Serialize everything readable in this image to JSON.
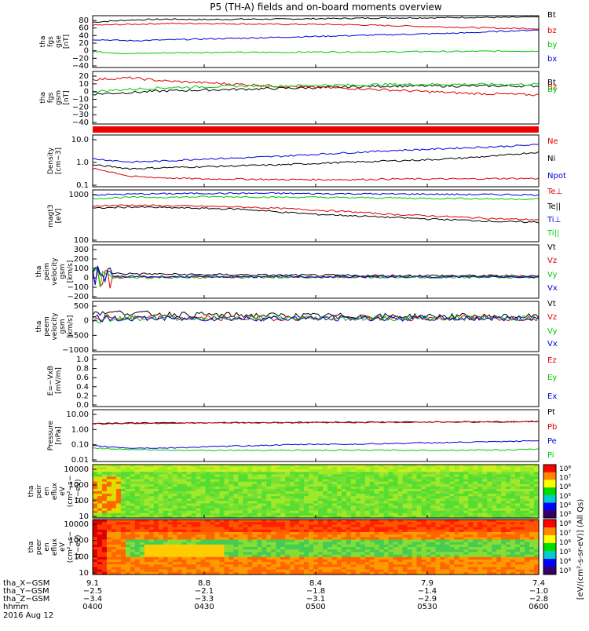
{
  "title": "P5 (TH-A) fields and on-board moments overview",
  "colors": {
    "black": "#000000",
    "red": "#dd0000",
    "green": "#00cc00",
    "blue": "#0000dd",
    "redbar": "#ee0000"
  },
  "chart_data": [
    {
      "type": "line",
      "id": "fgs_gse",
      "ylabel": [
        "tha",
        "fgs",
        "gse",
        "[nT]"
      ],
      "ytick_labels": [
        "80",
        "60",
        "40",
        "20",
        "0",
        "−20",
        "−40"
      ],
      "ylim": [
        -40,
        80
      ],
      "series": [
        {
          "name": "Bt",
          "color": "black",
          "values": [
            65,
            70,
            72,
            71,
            72,
            72,
            73,
            74,
            75,
            75,
            76,
            76,
            77
          ]
        },
        {
          "name": "bz",
          "color": "red",
          "values": [
            58,
            60,
            62,
            62,
            61,
            60,
            60,
            59,
            57,
            55,
            53,
            51,
            50
          ]
        },
        {
          "name": "by",
          "color": "green",
          "values": [
            -3,
            -8,
            -6,
            -5,
            -5,
            -5,
            -4,
            -4,
            -4,
            -3,
            -3,
            -2,
            -2
          ]
        },
        {
          "name": "bx",
          "color": "blue",
          "values": [
            25,
            22,
            24,
            26,
            28,
            30,
            32,
            34,
            36,
            38,
            40,
            44,
            47
          ]
        }
      ]
    },
    {
      "type": "line",
      "id": "fgs_gsm",
      "ylabel": [
        "tha",
        "fgs",
        "gsm",
        "[nT]"
      ],
      "ytick_labels": [
        "20",
        "10",
        "0",
        "−10",
        "−20",
        "−30",
        "−40"
      ],
      "ylim": [
        -45,
        20
      ],
      "series": [
        {
          "name": "Bt",
          "color": "black",
          "values": [
            -8,
            -6,
            -4,
            -3,
            -2,
            -1,
            0,
            1,
            2,
            2,
            2,
            2,
            2
          ]
        },
        {
          "name": "Bz",
          "color": "red",
          "values": [
            10,
            12,
            8,
            6,
            4,
            2,
            0,
            -1,
            -3,
            -5,
            -7,
            -8,
            -9
          ]
        },
        {
          "name": "By",
          "color": "green",
          "values": [
            -5,
            -2,
            0,
            1,
            2,
            2,
            3,
            3,
            4,
            4,
            4,
            4,
            4
          ]
        }
      ]
    },
    {
      "type": "line",
      "id": "density",
      "ylabel": [
        "Density",
        "[cm−3]"
      ],
      "ytick_labels": [
        "10.0",
        "1.0",
        "0.1"
      ],
      "ylim": [
        0.1,
        10
      ],
      "log": true,
      "series": [
        {
          "name": "Ne",
          "color": "red",
          "values": [
            0.5,
            0.25,
            0.22,
            0.2,
            0.2,
            0.19,
            0.19,
            0.19,
            0.2,
            0.2,
            0.2,
            0.21,
            0.21
          ]
        },
        {
          "name": "Ni",
          "color": "black",
          "values": [
            0.7,
            0.5,
            0.55,
            0.6,
            0.65,
            0.7,
            0.8,
            0.9,
            1.0,
            1.1,
            1.3,
            1.6,
            2.2
          ]
        },
        {
          "name": "Npot",
          "color": "blue",
          "values": [
            1.2,
            0.9,
            1.0,
            1.2,
            1.3,
            1.5,
            1.8,
            2.1,
            2.5,
            2.8,
            3.2,
            3.6,
            4.2
          ]
        }
      ]
    },
    {
      "type": "line",
      "id": "temperature",
      "ylabel": [
        "magt3",
        "[eV]"
      ],
      "ytick_labels": [
        "1000",
        "100"
      ],
      "ylim": [
        30,
        4000
      ],
      "log": true,
      "series": [
        {
          "name": "Te⊥",
          "color": "red",
          "values": [
            900,
            950,
            900,
            850,
            800,
            700,
            600,
            500,
            400,
            350,
            300,
            260,
            240
          ]
        },
        {
          "name": "Te||",
          "color": "black",
          "values": [
            700,
            800,
            750,
            700,
            650,
            500,
            400,
            350,
            300,
            260,
            230,
            200,
            190
          ]
        },
        {
          "name": "Ti⊥",
          "color": "blue",
          "values": [
            2500,
            2700,
            2800,
            2900,
            2900,
            2900,
            2800,
            2800,
            2700,
            2700,
            2600,
            2600,
            2500
          ]
        },
        {
          "name": "Ti||",
          "color": "green",
          "values": [
            1800,
            2000,
            2000,
            2100,
            2100,
            2000,
            2000,
            1900,
            1900,
            1800,
            1800,
            1700,
            1700
          ]
        }
      ]
    },
    {
      "type": "line",
      "id": "ion_velocity",
      "ylabel": [
        "tha",
        "peim",
        "velocity",
        "gsm",
        "[km/s]"
      ],
      "ytick_labels": [
        "300",
        "200",
        "100",
        "0",
        "−100",
        "−200"
      ],
      "ylim": [
        -200,
        300
      ],
      "series": [
        {
          "name": "Vt",
          "color": "black",
          "values": [
            40,
            30,
            25,
            20,
            20,
            15,
            15,
            12,
            12,
            12,
            10,
            10,
            10
          ]
        },
        {
          "name": "Vz",
          "color": "red",
          "values": [
            0,
            0,
            0,
            0,
            0,
            0,
            0,
            0,
            0,
            0,
            0,
            0,
            0
          ]
        },
        {
          "name": "Vy",
          "color": "green",
          "values": [
            -10,
            -5,
            -5,
            -5,
            -4,
            -4,
            -3,
            -3,
            -3,
            -3,
            -3,
            -3,
            -3
          ]
        },
        {
          "name": "Vx",
          "color": "blue",
          "values": [
            5,
            3,
            2,
            2,
            2,
            1,
            1,
            1,
            1,
            1,
            1,
            1,
            1
          ]
        }
      ]
    },
    {
      "type": "line",
      "id": "electron_velocity",
      "ylabel": [
        "tha",
        "peem",
        "velocity",
        "gsm",
        "[km/s]"
      ],
      "ytick_labels": [
        "500",
        "0",
        "−500",
        "−1000"
      ],
      "ylim": [
        -1000,
        500
      ],
      "series": [
        {
          "name": "Vt",
          "color": "black",
          "values": [
            200,
            150,
            120,
            100,
            90,
            80,
            70,
            70,
            60,
            60,
            60,
            50,
            50
          ]
        },
        {
          "name": "Vz",
          "color": "red",
          "values": [
            0,
            0,
            0,
            0,
            0,
            0,
            0,
            0,
            0,
            0,
            0,
            0,
            0
          ]
        },
        {
          "name": "Vy",
          "color": "green",
          "values": [
            0,
            0,
            0,
            0,
            0,
            0,
            0,
            0,
            0,
            0,
            0,
            0,
            0
          ]
        },
        {
          "name": "Vx",
          "color": "blue",
          "values": [
            -20,
            -10,
            -10,
            -10,
            -10,
            -10,
            -10,
            -10,
            -10,
            -10,
            -10,
            -10,
            -10
          ]
        }
      ]
    },
    {
      "type": "line",
      "id": "efield",
      "ylabel": [
        "E=−VxB",
        "[mV/m]"
      ],
      "ytick_labels": [
        "1.0",
        "0.8",
        "0.6",
        "0.4",
        "0.2",
        "0.0"
      ],
      "ylim": [
        0,
        1
      ],
      "series": [
        {
          "name": "Ez",
          "color": "red",
          "values": []
        },
        {
          "name": "Ey",
          "color": "green",
          "values": []
        },
        {
          "name": "Ex",
          "color": "blue",
          "values": []
        }
      ]
    },
    {
      "type": "line",
      "id": "pressure",
      "ylabel": [
        "Pressure",
        "[nPa]"
      ],
      "ytick_labels": [
        "10.00",
        "1.00",
        "0.10",
        "0.01"
      ],
      "ylim": [
        0.01,
        10
      ],
      "log": true,
      "series": [
        {
          "name": "Pt",
          "color": "black",
          "values": [
            1.6,
            1.7,
            1.7,
            1.75,
            1.8,
            1.8,
            1.85,
            1.9,
            1.9,
            1.95,
            2.0,
            2.0,
            2.1
          ]
        },
        {
          "name": "Pb",
          "color": "red",
          "values": [
            1.5,
            1.6,
            1.65,
            1.7,
            1.7,
            1.75,
            1.8,
            1.8,
            1.85,
            1.9,
            1.9,
            1.95,
            2.0
          ]
        },
        {
          "name": "Pe",
          "color": "blue",
          "values": [
            0.08,
            0.06,
            0.06,
            0.07,
            0.08,
            0.09,
            0.1,
            0.1,
            0.11,
            0.12,
            0.13,
            0.14,
            0.16
          ]
        },
        {
          "name": "Pi",
          "color": "green",
          "values": [
            0.06,
            0.05,
            0.045,
            0.045,
            0.045,
            0.045,
            0.045,
            0.045,
            0.045,
            0.045,
            0.046,
            0.047,
            0.05
          ]
        }
      ]
    },
    {
      "type": "heatmap",
      "id": "ion_spectrogram",
      "ylabel": [
        "tha",
        "peir",
        "en",
        "eflux",
        "eV",
        "(cm²−s−",
        "sr−eV)"
      ],
      "ytick_labels": [
        "10000",
        "1000",
        "100",
        "10"
      ],
      "ylim": [
        10,
        20000
      ],
      "log": true
    },
    {
      "type": "heatmap",
      "id": "electron_spectrogram",
      "ylabel": [
        "tha",
        "peer",
        "en",
        "eflux",
        "eV",
        "(cm²−s−",
        "sr−eV)"
      ],
      "ytick_labels": [
        "10000",
        "1000",
        "100",
        "10"
      ],
      "ylim": [
        5,
        20000
      ],
      "log": true
    }
  ],
  "colorbar_ion": {
    "ticks": [
      "10⁸",
      "10⁷",
      "10⁶",
      "10⁵",
      "10⁴",
      "10³"
    ]
  },
  "colorbar_electron": {
    "ticks": [
      "10⁸",
      "10⁷",
      "10⁶",
      "10⁵",
      "10⁴",
      "10³"
    ]
  },
  "colorbar_label": "[eV/(cm²-s-sr-eV)] (All Qs)",
  "xaxis": {
    "rows": [
      {
        "label": "tha_X−GSM",
        "values": [
          "9.1",
          "8.8",
          "8.4",
          "7.9",
          "7.4"
        ]
      },
      {
        "label": "tha_Y−GSM",
        "values": [
          "−2.5",
          "−2.1",
          "−1.8",
          "−1.4",
          "−1.0"
        ]
      },
      {
        "label": "tha_Z−GSM",
        "values": [
          "−3.4",
          "−3.3",
          "−3.1",
          "−2.9",
          "−2.8"
        ]
      },
      {
        "label": "hhmm",
        "values": [
          "0400",
          "0430",
          "0500",
          "0530",
          "0600"
        ]
      }
    ],
    "date": "2016 Aug 12"
  }
}
